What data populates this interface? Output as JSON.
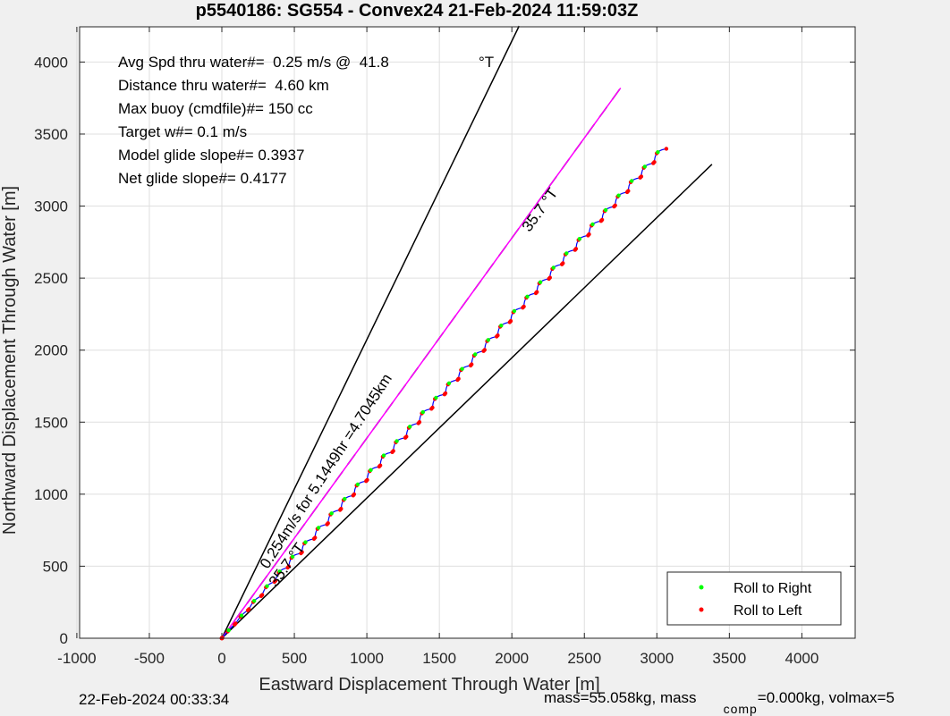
{
  "chart_data": {
    "type": "line",
    "title": "p5540186: SG554 - Convex24 21-Feb-2024 11:59:03Z",
    "xlabel": "Eastward Displacement Through Water [m]",
    "ylabel": "Northward Displacement Through Water [m]",
    "xlim": [
      -1000,
      4400
    ],
    "ylim": [
      0,
      4250
    ],
    "xticks": [
      -1000,
      -500,
      0,
      500,
      1000,
      1500,
      2000,
      2500,
      3000,
      3500,
      4000
    ],
    "yticks": [
      0,
      500,
      1000,
      1500,
      2000,
      2500,
      3000,
      3500,
      4000
    ],
    "grid": true,
    "annotations": [
      "Avg Spd thru water#=  0.25 m/s @  41.8",
      "Distance thru water#=  4.60 km",
      "Max buoy (cmdfile)#= 150 cc",
      "Target w#= 0.1 m/s",
      "Model glide slope#= 0.3937",
      "Net glide slope#= 0.4177"
    ],
    "degree_label": "°T",
    "rotated_labels": {
      "heading_upper": "35.7 °T",
      "heading_lower": "35.7 °T",
      "speed": "0.254m/s for 5.1449hr =4.7045km"
    },
    "lines": {
      "course_line": [
        [
          0,
          0
        ],
        [
          2750,
          3820
        ]
      ],
      "bound_upper": [
        [
          0,
          0
        ],
        [
          2050,
          4250
        ]
      ],
      "bound_lower": [
        [
          0,
          0
        ],
        [
          3380,
          3290
        ]
      ],
      "track_start": [
        0,
        0
      ],
      "track_end": [
        3060,
        3410
      ]
    },
    "series": [
      {
        "name": "Roll to Right",
        "color": "#00ff00",
        "marker": "dot"
      },
      {
        "name": "Roll to Left",
        "color": "#ff0000",
        "marker": "dot"
      }
    ],
    "legend_position": "bottom-right",
    "colors": {
      "track": "#0000ff",
      "course": "#ff00ff",
      "bounds": "#000000",
      "roll_right": "#00ff00",
      "roll_left": "#ff0000"
    }
  },
  "footer": {
    "left_timestamp": "22-Feb-2024 00:33:34",
    "right_a": "mass=55.058kg, mass",
    "right_sub": "comp",
    "right_b": "=0.000kg, volmax=5"
  }
}
